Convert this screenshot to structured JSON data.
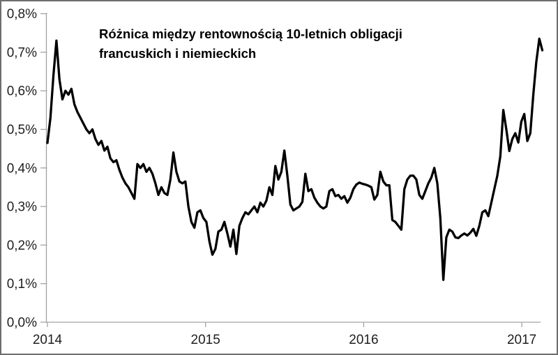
{
  "chart_data": {
    "type": "line",
    "title": "Różnica między rentownością 10-letnich obligacji francuskich i niemieckich",
    "title_lines": [
      "Różnica między rentownością 10-letnich obligacji",
      "francuskich i niemieckich"
    ],
    "x_tick_labels": [
      "2014",
      "2015",
      "2016",
      "2017"
    ],
    "y_tick_labels": [
      "0,0%",
      "0,1%",
      "0,2%",
      "0,3%",
      "0,4%",
      "0,5%",
      "0,6%",
      "0,7%",
      "0,8%"
    ],
    "ylim_percent": [
      0.0,
      0.8
    ],
    "x_range_note": "weekly values, Jan 2014 - Feb 2017",
    "grid": false,
    "legend": false,
    "line_color": "#000000",
    "axis_color": "#a3a3a3",
    "label_color": "#1f1f1f",
    "series": [
      {
        "unit": "%",
        "values": [
          0.465,
          0.53,
          0.64,
          0.73,
          0.63,
          0.578,
          0.6,
          0.59,
          0.605,
          0.565,
          0.545,
          0.53,
          0.515,
          0.5,
          0.49,
          0.5,
          0.475,
          0.46,
          0.47,
          0.445,
          0.455,
          0.425,
          0.415,
          0.42,
          0.395,
          0.375,
          0.36,
          0.35,
          0.335,
          0.32,
          0.41,
          0.4,
          0.41,
          0.39,
          0.4,
          0.385,
          0.36,
          0.33,
          0.35,
          0.335,
          0.33,
          0.37,
          0.44,
          0.39,
          0.365,
          0.36,
          0.365,
          0.3,
          0.26,
          0.245,
          0.285,
          0.29,
          0.27,
          0.26,
          0.21,
          0.175,
          0.19,
          0.235,
          0.24,
          0.26,
          0.23,
          0.196,
          0.24,
          0.177,
          0.25,
          0.27,
          0.285,
          0.28,
          0.29,
          0.3,
          0.285,
          0.31,
          0.3,
          0.315,
          0.35,
          0.33,
          0.405,
          0.37,
          0.39,
          0.445,
          0.38,
          0.305,
          0.29,
          0.295,
          0.3,
          0.312,
          0.385,
          0.34,
          0.345,
          0.323,
          0.31,
          0.3,
          0.295,
          0.3,
          0.34,
          0.345,
          0.327,
          0.33,
          0.32,
          0.327,
          0.31,
          0.323,
          0.345,
          0.357,
          0.362,
          0.359,
          0.357,
          0.354,
          0.35,
          0.318,
          0.33,
          0.39,
          0.365,
          0.355,
          0.355,
          0.265,
          0.26,
          0.25,
          0.24,
          0.345,
          0.37,
          0.38,
          0.38,
          0.37,
          0.33,
          0.32,
          0.34,
          0.36,
          0.375,
          0.4,
          0.36,
          0.27,
          0.11,
          0.22,
          0.24,
          0.235,
          0.22,
          0.218,
          0.225,
          0.23,
          0.225,
          0.232,
          0.242,
          0.224,
          0.25,
          0.285,
          0.29,
          0.275,
          0.31,
          0.345,
          0.38,
          0.43,
          0.55,
          0.5,
          0.444,
          0.475,
          0.49,
          0.466,
          0.52,
          0.54,
          0.47,
          0.49,
          0.59,
          0.675,
          0.735,
          0.705
        ]
      }
    ]
  }
}
